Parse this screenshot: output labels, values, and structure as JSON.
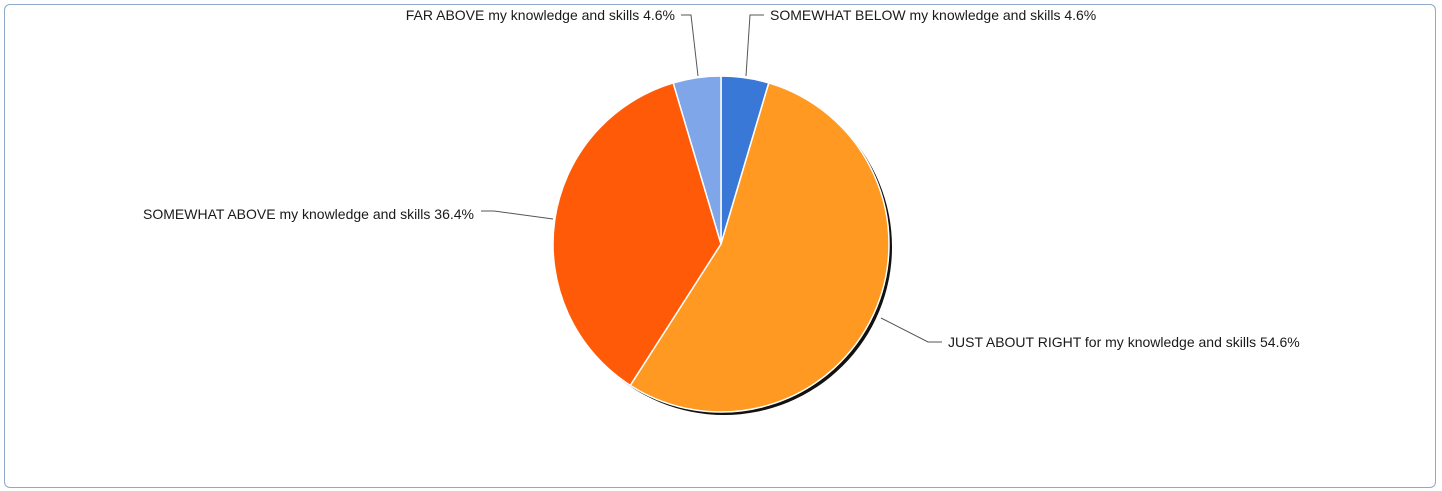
{
  "chart_data": {
    "type": "pie",
    "title": "",
    "start_angle_deg": 0,
    "direction": "clockwise",
    "slices": [
      {
        "label": "SOMEWHAT BELOW my knowledge and skills",
        "value": 4.6,
        "display": "4.6%",
        "color": "#3a78d8"
      },
      {
        "label": "JUST ABOUT RIGHT for my knowledge and skills",
        "value": 54.6,
        "display": "54.6%",
        "color": "#ff9922"
      },
      {
        "label": "SOMEWHAT ABOVE my knowledge and skills",
        "value": 36.4,
        "display": "36.4%",
        "color": "#ff5a08"
      },
      {
        "label": "FAR ABOVE my knowledge and skills",
        "value": 4.6,
        "display": "4.6%",
        "color": "#7fa6e8"
      }
    ],
    "legend": "none",
    "labels": "outside-with-leader-lines"
  }
}
